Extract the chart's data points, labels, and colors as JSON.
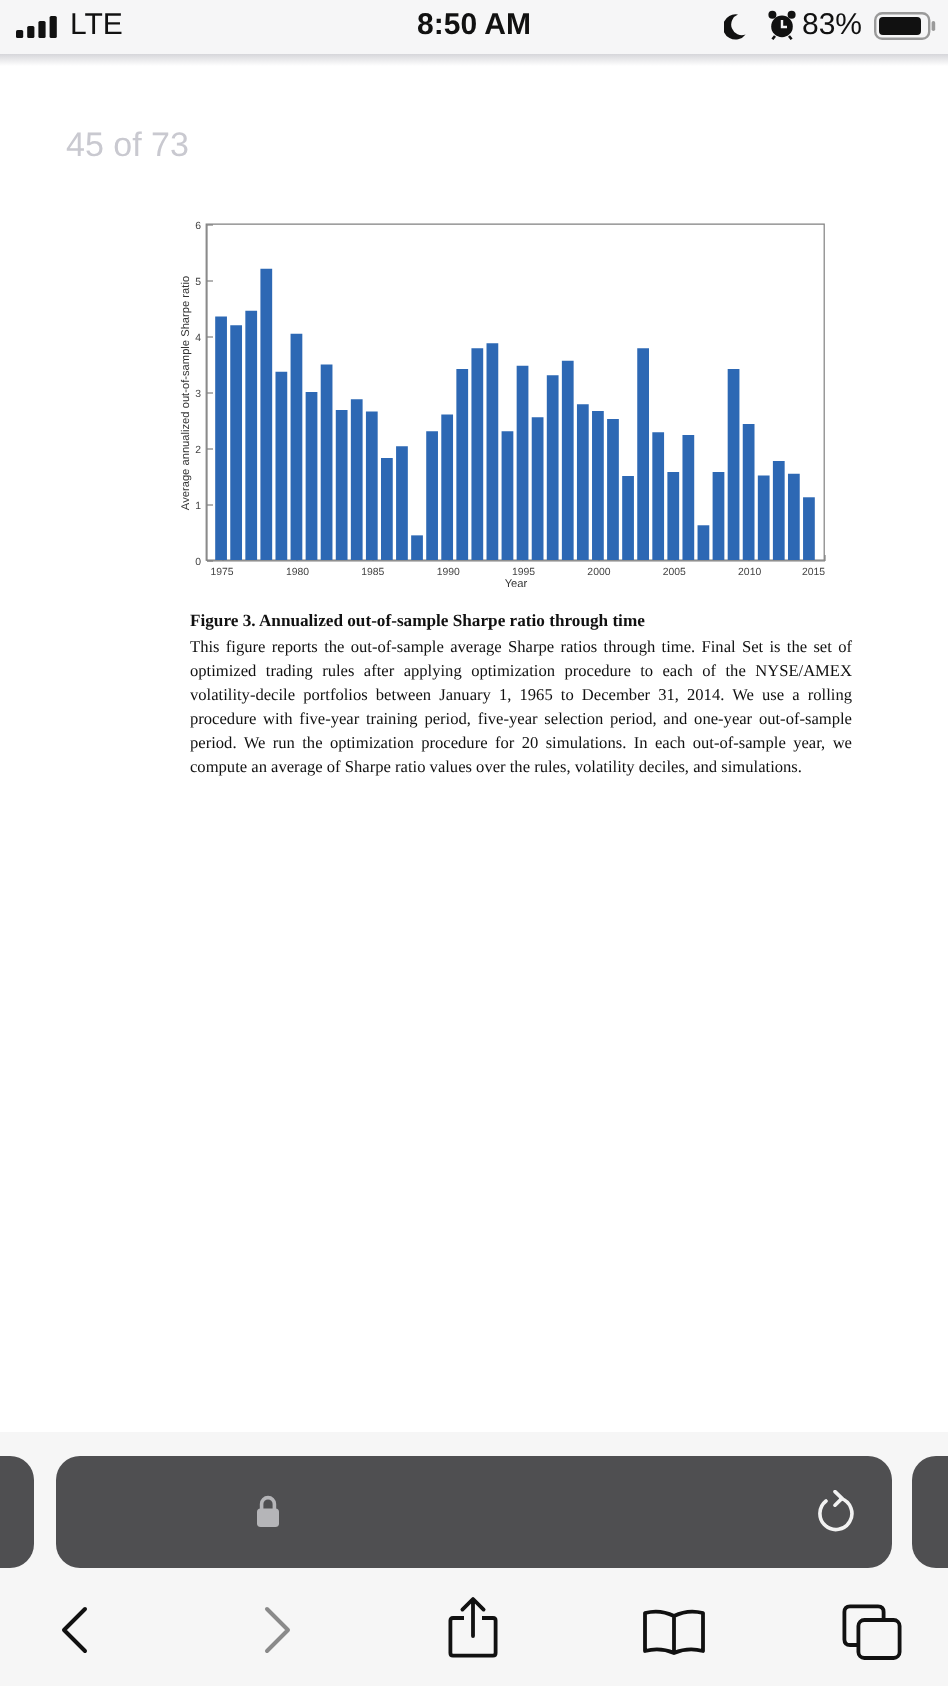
{
  "chart_data": {
    "type": "bar",
    "title": "Figure 3. Annualized out-of-sample Sharpe ratio through time",
    "xlabel": "Year",
    "ylabel": "Average annualized out-of-sample Sharpe ratio",
    "annotations": [
      "This figure reports the out-of-sample average Sharpe ratios through time. Final Set is the set of optimized trading rules after applying optimization procedure to each of the NYSE/AMEX volatility-decile portfolios between January 1, 1965 to December 31, 2014. We use a rolling procedure with five-year training period, five-year selection period, and one-year out-of-sample period. We run the optimization procedure for 20 simulations. In each out-of-sample year, we compute an average of Sharpe ratio values over the rules, volatility deciles, and simulations.",
      "45 of 73",
      "LTE",
      "8:50 AM",
      "83%"
    ],
    "x": [
      1975,
      1976,
      1977,
      1978,
      1979,
      1980,
      1981,
      1982,
      1983,
      1984,
      1985,
      1986,
      1987,
      1988,
      1989,
      1990,
      1991,
      1992,
      1993,
      1994,
      1995,
      1996,
      1997,
      1998,
      1999,
      2000,
      2001,
      2002,
      2003,
      2004,
      2005,
      2006,
      2007,
      2008,
      2009,
      2010,
      2011,
      2012,
      2013,
      2014
    ],
    "values": [
      4.35,
      4.19,
      4.45,
      5.2,
      3.36,
      4.04,
      3.0,
      3.49,
      2.68,
      2.87,
      2.65,
      1.82,
      2.03,
      0.44,
      2.3,
      2.6,
      3.41,
      3.78,
      3.87,
      2.3,
      3.47,
      2.55,
      3.3,
      3.56,
      2.78,
      2.66,
      2.52,
      1.5,
      3.78,
      2.28,
      1.57,
      2.23,
      0.62,
      1.57,
      3.41,
      2.43,
      1.51,
      1.77,
      1.54,
      1.12
    ],
    "color": "#2d68b4",
    "xlim": [
      1974,
      2015
    ],
    "xticks": [
      1975,
      1980,
      1985,
      1990,
      1995,
      2000,
      2005,
      2010,
      2015
    ],
    "ylim": [
      0,
      6
    ],
    "yticks": [
      0,
      1,
      2,
      3,
      4,
      5,
      6
    ],
    "grid": false
  }
}
